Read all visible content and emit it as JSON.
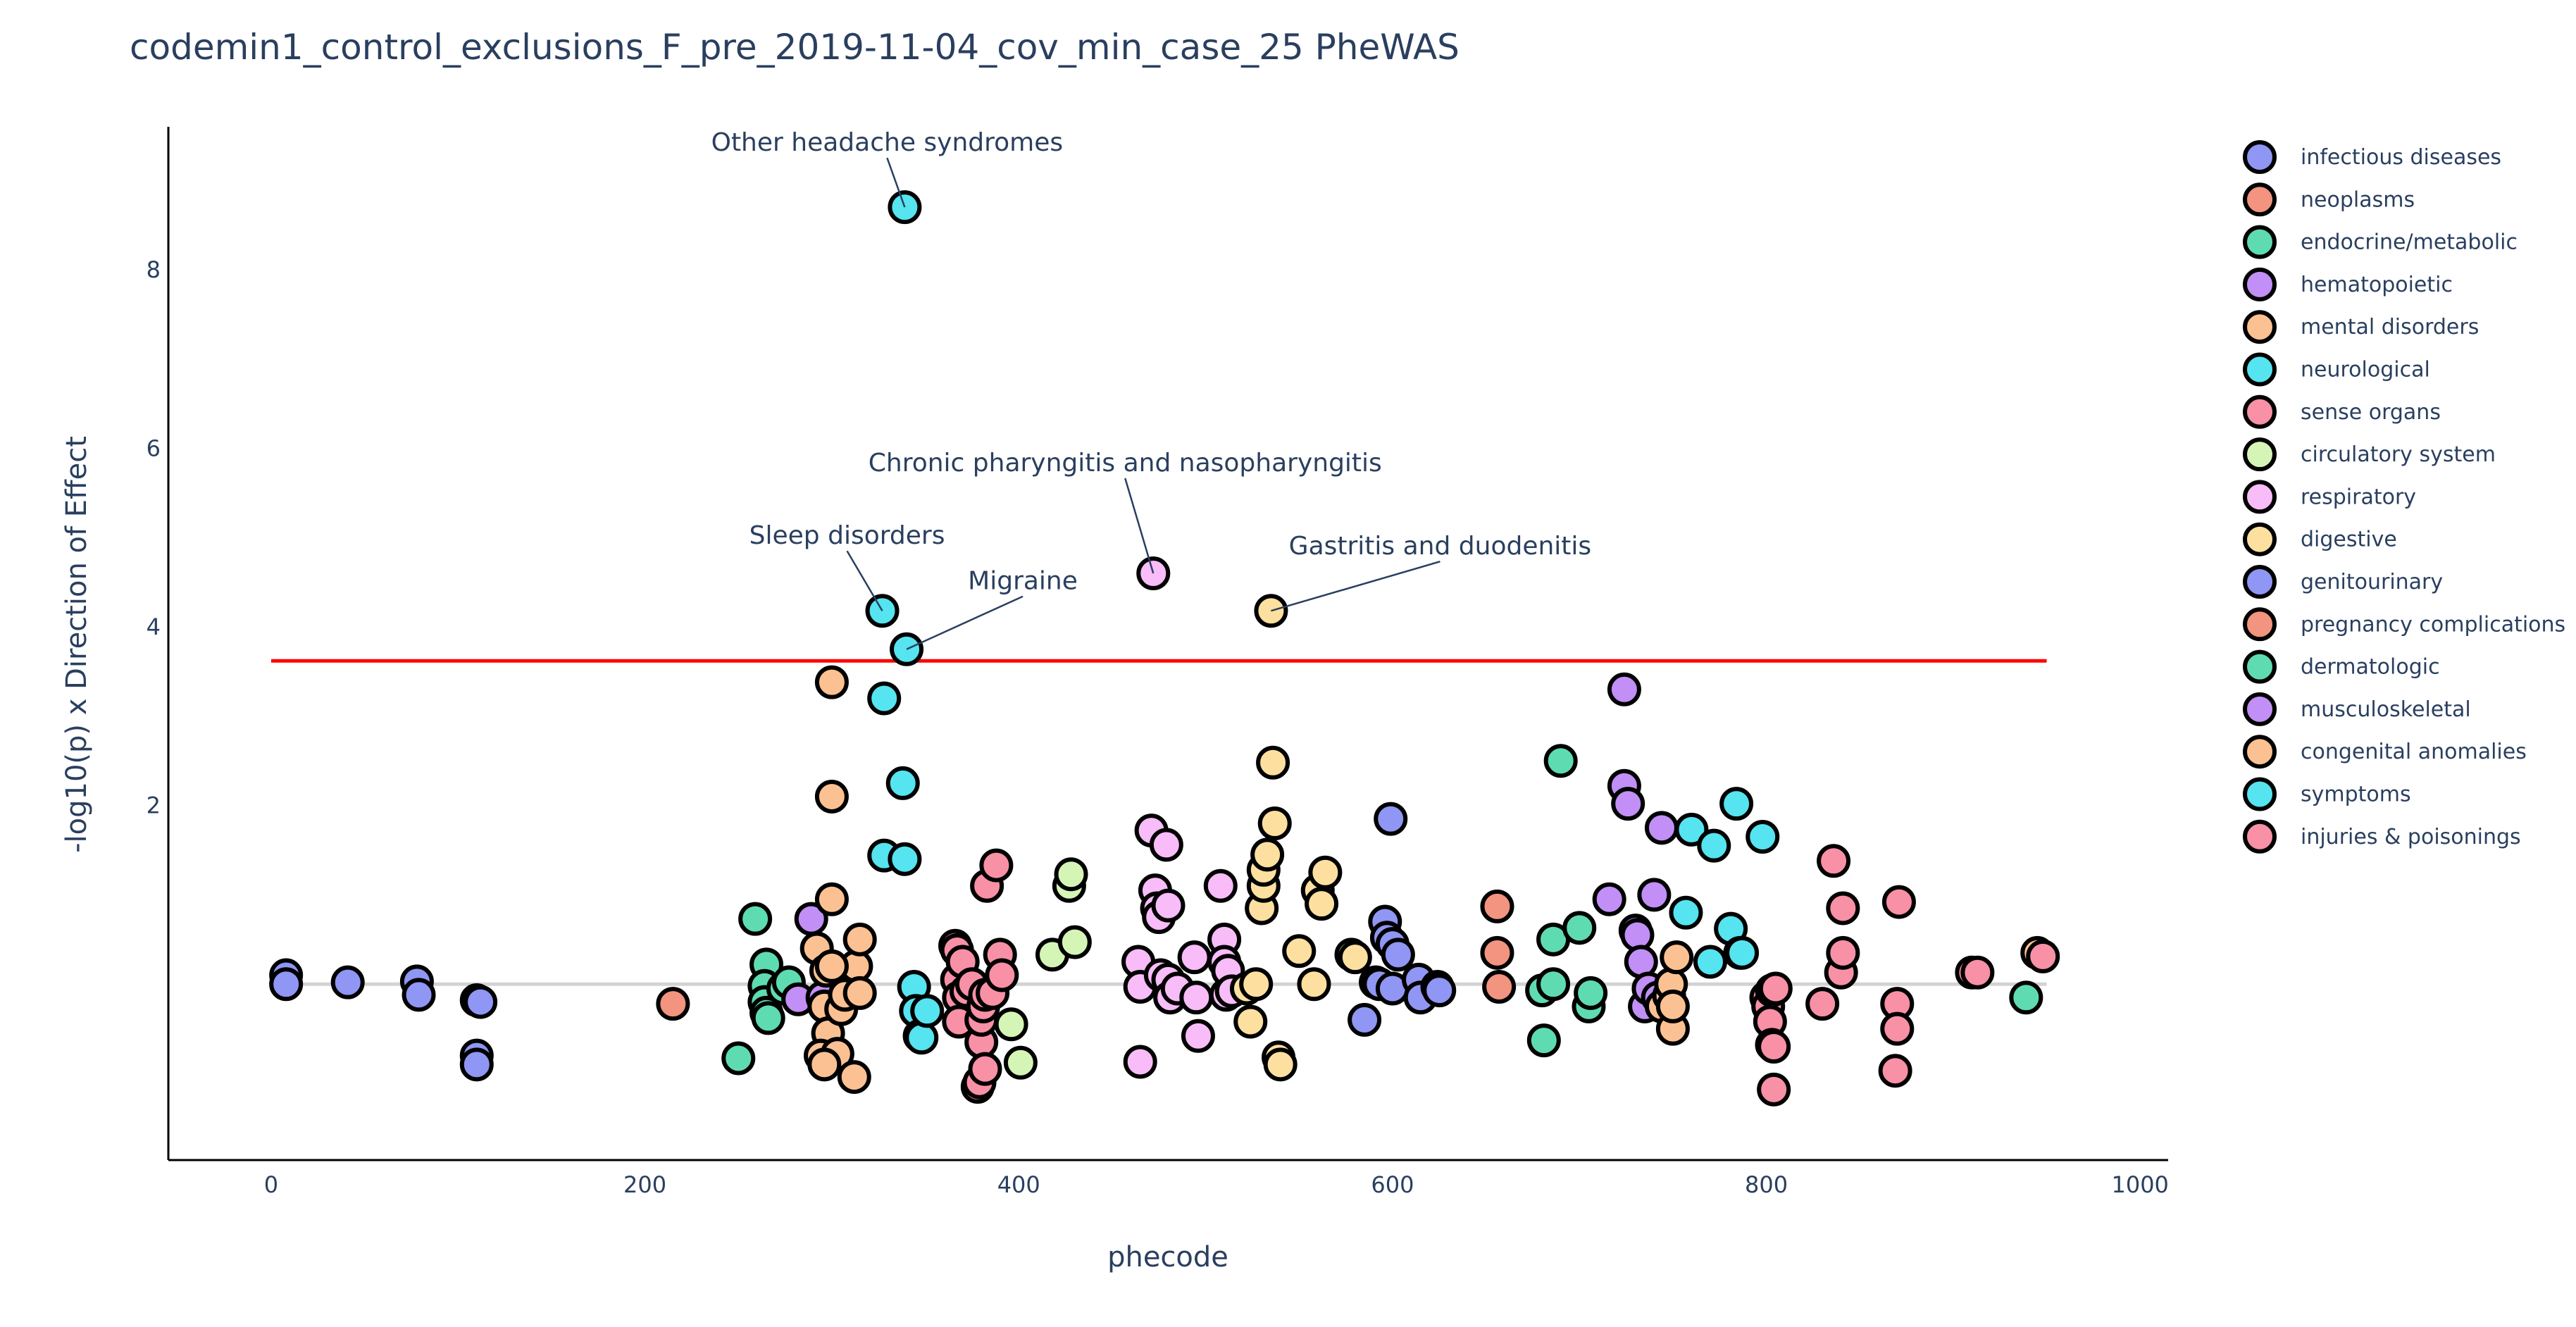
{
  "chart_data": {
    "type": "scatter",
    "title": "codemin1_control_exclusions_F_pre_2019-11-04_cov_min_case_25 PheWAS",
    "xlabel": "phecode",
    "ylabel": "-log10(p) x Direction of Effect",
    "xlim": [
      -55,
      1015
    ],
    "ylim": [
      -1.97,
      9.6
    ],
    "xticks": [
      0,
      200,
      400,
      600,
      800,
      1000
    ],
    "yticks": [
      2,
      4,
      6,
      8
    ],
    "grid": false,
    "legend_position": "right",
    "significance_line": {
      "y": 3.62,
      "x_range": [
        0,
        950
      ],
      "color": "#ff0000"
    },
    "baseline": {
      "y": 0,
      "color": "#d3d3d3"
    },
    "categories": [
      {
        "name": "infectious diseases",
        "color": "#8f96f3"
      },
      {
        "name": "neoplasms",
        "color": "#f2947f"
      },
      {
        "name": "endocrine/metabolic",
        "color": "#5fdbb2"
      },
      {
        "name": "hematopoietic",
        "color": "#c18ff5"
      },
      {
        "name": "mental disorders",
        "color": "#fcc192"
      },
      {
        "name": "neurological",
        "color": "#55e4f0"
      },
      {
        "name": "sense organs",
        "color": "#f890a6"
      },
      {
        "name": "circulatory system",
        "color": "#d5f5b6"
      },
      {
        "name": "respiratory",
        "color": "#f8bcf8"
      },
      {
        "name": "digestive",
        "color": "#fde0a0"
      },
      {
        "name": "genitourinary",
        "color": "#8f96f3"
      },
      {
        "name": "pregnancy complications",
        "color": "#f2947f"
      },
      {
        "name": "dermatologic",
        "color": "#5fdbb2"
      },
      {
        "name": "musculoskeletal",
        "color": "#c18ff5"
      },
      {
        "name": "congenital anomalies",
        "color": "#fcc192"
      },
      {
        "name": "symptoms",
        "color": "#55e4f0"
      },
      {
        "name": "injuries & poisonings",
        "color": "#f890a6"
      }
    ],
    "annotations": [
      {
        "text": "Other headache syndromes",
        "x": 339,
        "y": 8.7
      },
      {
        "text": "Chronic pharyngitis and nasopharyngitis",
        "x": 472,
        "y": 4.6
      },
      {
        "text": "Sleep disorders",
        "x": 327,
        "y": 4.18
      },
      {
        "text": "Migraine",
        "x": 340,
        "y": 3.75
      },
      {
        "text": "Gastritis and duodenitis",
        "x": 535,
        "y": 4.18
      }
    ],
    "points": [
      {
        "x": 8,
        "y": 0.1,
        "c": 0
      },
      {
        "x": 8,
        "y": 0.0,
        "c": 0
      },
      {
        "x": 41,
        "y": 0.02,
        "c": 0
      },
      {
        "x": 78,
        "y": 0.03,
        "c": 0
      },
      {
        "x": 79,
        "y": -0.12,
        "c": 0
      },
      {
        "x": 110,
        "y": -0.18,
        "c": 0
      },
      {
        "x": 112,
        "y": -0.2,
        "c": 0
      },
      {
        "x": 110,
        "y": -0.8,
        "c": 0
      },
      {
        "x": 110,
        "y": -0.9,
        "c": 0
      },
      {
        "x": 215,
        "y": -0.22,
        "c": 1
      },
      {
        "x": 250,
        "y": -0.83,
        "c": 2
      },
      {
        "x": 259,
        "y": 0.73,
        "c": 2
      },
      {
        "x": 265,
        "y": 0.22,
        "c": 2
      },
      {
        "x": 264,
        "y": -0.02,
        "c": 2
      },
      {
        "x": 264,
        "y": -0.2,
        "c": 2
      },
      {
        "x": 265,
        "y": -0.32,
        "c": 2
      },
      {
        "x": 266,
        "y": -0.38,
        "c": 2
      },
      {
        "x": 274,
        "y": -0.05,
        "c": 2
      },
      {
        "x": 277,
        "y": 0.02,
        "c": 2
      },
      {
        "x": 282,
        "y": -0.17,
        "c": 3
      },
      {
        "x": 289,
        "y": 0.73,
        "c": 3
      },
      {
        "x": 295,
        "y": -0.15,
        "c": 3
      },
      {
        "x": 292,
        "y": 0.4,
        "c": 4
      },
      {
        "x": 297,
        "y": 0.15,
        "c": 4
      },
      {
        "x": 296,
        "y": -0.25,
        "c": 4
      },
      {
        "x": 298,
        "y": -0.55,
        "c": 4
      },
      {
        "x": 294,
        "y": -0.8,
        "c": 4
      },
      {
        "x": 300,
        "y": 0.95,
        "c": 4
      },
      {
        "x": 300,
        "y": 2.1,
        "c": 4
      },
      {
        "x": 300,
        "y": 3.38,
        "c": 4
      },
      {
        "x": 303,
        "y": -0.78,
        "c": 4
      },
      {
        "x": 305,
        "y": -0.28,
        "c": 4
      },
      {
        "x": 307,
        "y": -0.12,
        "c": 4
      },
      {
        "x": 312,
        "y": -1.04,
        "c": 4
      },
      {
        "x": 313,
        "y": 0.2,
        "c": 4
      },
      {
        "x": 315,
        "y": 0.5,
        "c": 4
      },
      {
        "x": 315,
        "y": -0.1,
        "c": 4
      },
      {
        "x": 296,
        "y": -0.9,
        "c": 4
      },
      {
        "x": 300,
        "y": 0.2,
        "c": 4
      },
      {
        "x": 327,
        "y": 4.18,
        "c": 5
      },
      {
        "x": 328,
        "y": 3.2,
        "c": 5
      },
      {
        "x": 328,
        "y": 1.44,
        "c": 5
      },
      {
        "x": 339,
        "y": 1.4,
        "c": 5
      },
      {
        "x": 339,
        "y": 8.7,
        "c": 5
      },
      {
        "x": 340,
        "y": 3.75,
        "c": 5
      },
      {
        "x": 338,
        "y": 2.25,
        "c": 5
      },
      {
        "x": 344,
        "y": -0.03,
        "c": 5
      },
      {
        "x": 345,
        "y": -0.3,
        "c": 5
      },
      {
        "x": 347,
        "y": -0.58,
        "c": 5
      },
      {
        "x": 348,
        "y": -0.6,
        "c": 5
      },
      {
        "x": 351,
        "y": -0.3,
        "c": 5
      },
      {
        "x": 366,
        "y": 0.43,
        "c": 6
      },
      {
        "x": 367,
        "y": 0.38,
        "c": 6
      },
      {
        "x": 367,
        "y": 0.05,
        "c": 6
      },
      {
        "x": 368,
        "y": -0.15,
        "c": 6
      },
      {
        "x": 368,
        "y": -0.42,
        "c": 6
      },
      {
        "x": 370,
        "y": 0.25,
        "c": 6
      },
      {
        "x": 372,
        "y": -0.08,
        "c": 6
      },
      {
        "x": 375,
        "y": 0.0,
        "c": 6
      },
      {
        "x": 378,
        "y": -1.15,
        "c": 6
      },
      {
        "x": 379,
        "y": -1.1,
        "c": 6
      },
      {
        "x": 380,
        "y": -0.65,
        "c": 6
      },
      {
        "x": 380,
        "y": -0.4,
        "c": 6
      },
      {
        "x": 381,
        "y": -0.25,
        "c": 6
      },
      {
        "x": 382,
        "y": -0.12,
        "c": 6
      },
      {
        "x": 382,
        "y": -0.95,
        "c": 6
      },
      {
        "x": 383,
        "y": 1.1,
        "c": 6
      },
      {
        "x": 386,
        "y": -0.1,
        "c": 6
      },
      {
        "x": 388,
        "y": 1.33,
        "c": 6
      },
      {
        "x": 390,
        "y": 0.33,
        "c": 6
      },
      {
        "x": 391,
        "y": 0.1,
        "c": 6
      },
      {
        "x": 396,
        "y": -0.45,
        "c": 7
      },
      {
        "x": 401,
        "y": -0.88,
        "c": 7
      },
      {
        "x": 418,
        "y": 0.33,
        "c": 7
      },
      {
        "x": 427,
        "y": 1.1,
        "c": 7
      },
      {
        "x": 428,
        "y": 1.23,
        "c": 7
      },
      {
        "x": 430,
        "y": 0.47,
        "c": 7
      },
      {
        "x": 464,
        "y": 0.25,
        "c": 8
      },
      {
        "x": 465,
        "y": -0.03,
        "c": 8
      },
      {
        "x": 465,
        "y": -0.87,
        "c": 8
      },
      {
        "x": 471,
        "y": 1.72,
        "c": 8
      },
      {
        "x": 472,
        "y": 4.6,
        "c": 8
      },
      {
        "x": 473,
        "y": 1.05,
        "c": 8
      },
      {
        "x": 474,
        "y": 0.85,
        "c": 8
      },
      {
        "x": 475,
        "y": 0.75,
        "c": 8
      },
      {
        "x": 476,
        "y": 0.1,
        "c": 8
      },
      {
        "x": 479,
        "y": 1.56,
        "c": 8
      },
      {
        "x": 480,
        "y": 0.88,
        "c": 8
      },
      {
        "x": 480,
        "y": 0.05,
        "c": 8
      },
      {
        "x": 481,
        "y": -0.15,
        "c": 8
      },
      {
        "x": 485,
        "y": -0.05,
        "c": 8
      },
      {
        "x": 494,
        "y": 0.3,
        "c": 8
      },
      {
        "x": 495,
        "y": -0.15,
        "c": 8
      },
      {
        "x": 496,
        "y": -0.58,
        "c": 8
      },
      {
        "x": 508,
        "y": 1.1,
        "c": 8
      },
      {
        "x": 510,
        "y": 0.5,
        "c": 8
      },
      {
        "x": 510,
        "y": 0.25,
        "c": 8
      },
      {
        "x": 511,
        "y": -0.12,
        "c": 8
      },
      {
        "x": 512,
        "y": 0.15,
        "c": 8
      },
      {
        "x": 514,
        "y": -0.08,
        "c": 8
      },
      {
        "x": 522,
        "y": -0.05,
        "c": 9
      },
      {
        "x": 524,
        "y": -0.42,
        "c": 9
      },
      {
        "x": 527,
        "y": 0.0,
        "c": 9
      },
      {
        "x": 530,
        "y": 0.85,
        "c": 9
      },
      {
        "x": 531,
        "y": 1.1,
        "c": 9
      },
      {
        "x": 531,
        "y": 1.28,
        "c": 9
      },
      {
        "x": 533,
        "y": 1.45,
        "c": 9
      },
      {
        "x": 535,
        "y": 4.18,
        "c": 9
      },
      {
        "x": 536,
        "y": 2.48,
        "c": 9
      },
      {
        "x": 537,
        "y": 1.8,
        "c": 9
      },
      {
        "x": 539,
        "y": -0.82,
        "c": 9
      },
      {
        "x": 540,
        "y": -0.9,
        "c": 9
      },
      {
        "x": 550,
        "y": 0.37,
        "c": 9
      },
      {
        "x": 558,
        "y": 0.0,
        "c": 9
      },
      {
        "x": 560,
        "y": 1.05,
        "c": 9
      },
      {
        "x": 562,
        "y": 0.9,
        "c": 9
      },
      {
        "x": 564,
        "y": 1.25,
        "c": 9
      },
      {
        "x": 578,
        "y": 0.33,
        "c": 9
      },
      {
        "x": 580,
        "y": 0.3,
        "c": 9
      },
      {
        "x": 585,
        "y": -0.4,
        "c": 10
      },
      {
        "x": 591,
        "y": 0.02,
        "c": 10
      },
      {
        "x": 593,
        "y": 0.0,
        "c": 10
      },
      {
        "x": 596,
        "y": 0.7,
        "c": 10
      },
      {
        "x": 597,
        "y": 0.52,
        "c": 10
      },
      {
        "x": 599,
        "y": 1.85,
        "c": 10
      },
      {
        "x": 600,
        "y": 0.45,
        "c": 10
      },
      {
        "x": 600,
        "y": -0.05,
        "c": 10
      },
      {
        "x": 603,
        "y": 0.33,
        "c": 10
      },
      {
        "x": 614,
        "y": 0.05,
        "c": 10
      },
      {
        "x": 615,
        "y": -0.15,
        "c": 10
      },
      {
        "x": 624,
        "y": -0.03,
        "c": 10
      },
      {
        "x": 625,
        "y": -0.07,
        "c": 10
      },
      {
        "x": 656,
        "y": 0.87,
        "c": 11
      },
      {
        "x": 656,
        "y": 0.35,
        "c": 11
      },
      {
        "x": 657,
        "y": -0.03,
        "c": 11
      },
      {
        "x": 680,
        "y": -0.07,
        "c": 12
      },
      {
        "x": 681,
        "y": -0.63,
        "c": 12
      },
      {
        "x": 686,
        "y": 0.5,
        "c": 12
      },
      {
        "x": 686,
        "y": 0.0,
        "c": 12
      },
      {
        "x": 690,
        "y": 2.5,
        "c": 12
      },
      {
        "x": 700,
        "y": 0.63,
        "c": 12
      },
      {
        "x": 705,
        "y": -0.25,
        "c": 12
      },
      {
        "x": 706,
        "y": -0.1,
        "c": 12
      },
      {
        "x": 716,
        "y": 0.95,
        "c": 13
      },
      {
        "x": 724,
        "y": 3.3,
        "c": 13
      },
      {
        "x": 724,
        "y": 2.22,
        "c": 13
      },
      {
        "x": 726,
        "y": 2.02,
        "c": 13
      },
      {
        "x": 730,
        "y": 0.6,
        "c": 13
      },
      {
        "x": 731,
        "y": 0.55,
        "c": 13
      },
      {
        "x": 733,
        "y": 0.25,
        "c": 13
      },
      {
        "x": 735,
        "y": -0.25,
        "c": 13
      },
      {
        "x": 737,
        "y": -0.05,
        "c": 13
      },
      {
        "x": 740,
        "y": 1.0,
        "c": 13
      },
      {
        "x": 744,
        "y": 1.75,
        "c": 13
      },
      {
        "x": 742,
        "y": -0.15,
        "c": 13
      },
      {
        "x": 744,
        "y": -0.25,
        "c": 14
      },
      {
        "x": 748,
        "y": -0.13,
        "c": 14
      },
      {
        "x": 749,
        "y": 0.0,
        "c": 14
      },
      {
        "x": 750,
        "y": -0.5,
        "c": 14
      },
      {
        "x": 752,
        "y": 0.3,
        "c": 14
      },
      {
        "x": 750,
        "y": -0.25,
        "c": 14
      },
      {
        "x": 757,
        "y": 0.8,
        "c": 15
      },
      {
        "x": 760,
        "y": 1.73,
        "c": 15
      },
      {
        "x": 770,
        "y": 0.25,
        "c": 15
      },
      {
        "x": 772,
        "y": 1.55,
        "c": 15
      },
      {
        "x": 781,
        "y": 0.62,
        "c": 15
      },
      {
        "x": 784,
        "y": 2.02,
        "c": 15
      },
      {
        "x": 786,
        "y": 0.35,
        "c": 15
      },
      {
        "x": 798,
        "y": 1.65,
        "c": 15
      },
      {
        "x": 787,
        "y": 0.35,
        "c": 15
      },
      {
        "x": 800,
        "y": -0.15,
        "c": 16
      },
      {
        "x": 801,
        "y": -0.25,
        "c": 16
      },
      {
        "x": 802,
        "y": -0.42,
        "c": 16
      },
      {
        "x": 803,
        "y": -0.07,
        "c": 16
      },
      {
        "x": 803,
        "y": -0.68,
        "c": 16
      },
      {
        "x": 804,
        "y": -0.7,
        "c": 16
      },
      {
        "x": 805,
        "y": -0.05,
        "c": 16
      },
      {
        "x": 804,
        "y": -1.18,
        "c": 16
      },
      {
        "x": 830,
        "y": -0.22,
        "c": 16
      },
      {
        "x": 836,
        "y": 1.38,
        "c": 16
      },
      {
        "x": 840,
        "y": 0.13,
        "c": 16
      },
      {
        "x": 841,
        "y": 0.35,
        "c": 16
      },
      {
        "x": 841,
        "y": 0.85,
        "c": 16
      },
      {
        "x": 869,
        "y": -0.97,
        "c": 16
      },
      {
        "x": 870,
        "y": -0.22,
        "c": 16
      },
      {
        "x": 870,
        "y": -0.5,
        "c": 16
      },
      {
        "x": 871,
        "y": 0.92,
        "c": 16
      },
      {
        "x": 910,
        "y": 0.13,
        "c": 16
      },
      {
        "x": 913,
        "y": 0.13,
        "c": 16
      },
      {
        "x": 939,
        "y": -0.15,
        "c": 12
      },
      {
        "x": 945,
        "y": 0.35,
        "c": 14
      },
      {
        "x": 948,
        "y": 0.31,
        "c": 16
      }
    ]
  }
}
